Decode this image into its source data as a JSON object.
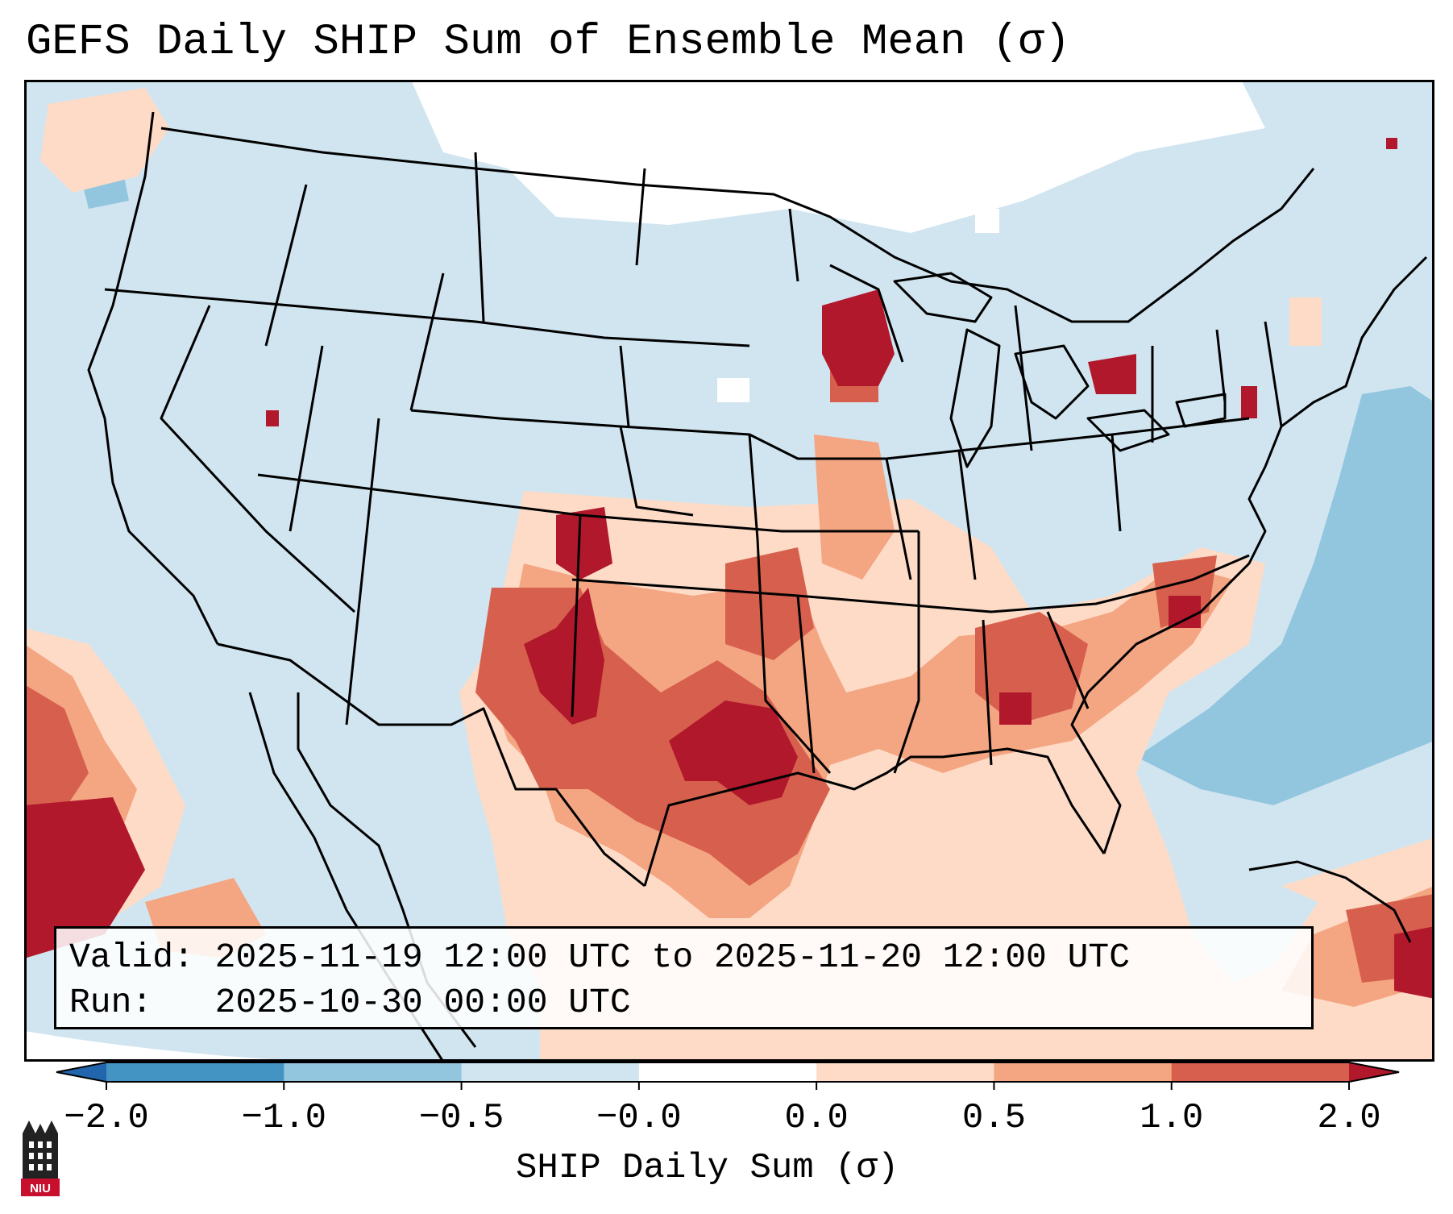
{
  "title": "GEFS Daily SHIP Sum of Ensemble Mean (σ)",
  "info": {
    "valid_label": "Valid:",
    "valid_text": "2025-11-19 12:00 UTC to 2025-11-20 12:00 UTC",
    "run_label": "Run:",
    "run_text": "2025-10-30 00:00 UTC"
  },
  "colorbar": {
    "label": "SHIP Daily Sum (σ)",
    "ticks": [
      "−2.0",
      "−1.0",
      "−0.5",
      "−0.0",
      "0.0",
      "0.5",
      "1.0",
      "2.0"
    ],
    "bins": [
      {
        "range": "< -2.0",
        "color": "#2166ac"
      },
      {
        "range": "-2.0 to -1.0",
        "color": "#4393c3"
      },
      {
        "range": "-1.0 to -0.5",
        "color": "#92c5de"
      },
      {
        "range": "-0.5 to -0.0",
        "color": "#d1e5f0"
      },
      {
        "range": "-0.0 to 0.0",
        "color": "#ffffff"
      },
      {
        "range": "0.0 to 0.5",
        "color": "#fddbc7"
      },
      {
        "range": "0.5 to 1.0",
        "color": "#f4a582"
      },
      {
        "range": "1.0 to 2.0",
        "color": "#d6604d"
      },
      {
        "range": "> 2.0",
        "color": "#b2182b"
      }
    ]
  },
  "logo": {
    "text": "NIU",
    "color": "#c8102e"
  }
}
